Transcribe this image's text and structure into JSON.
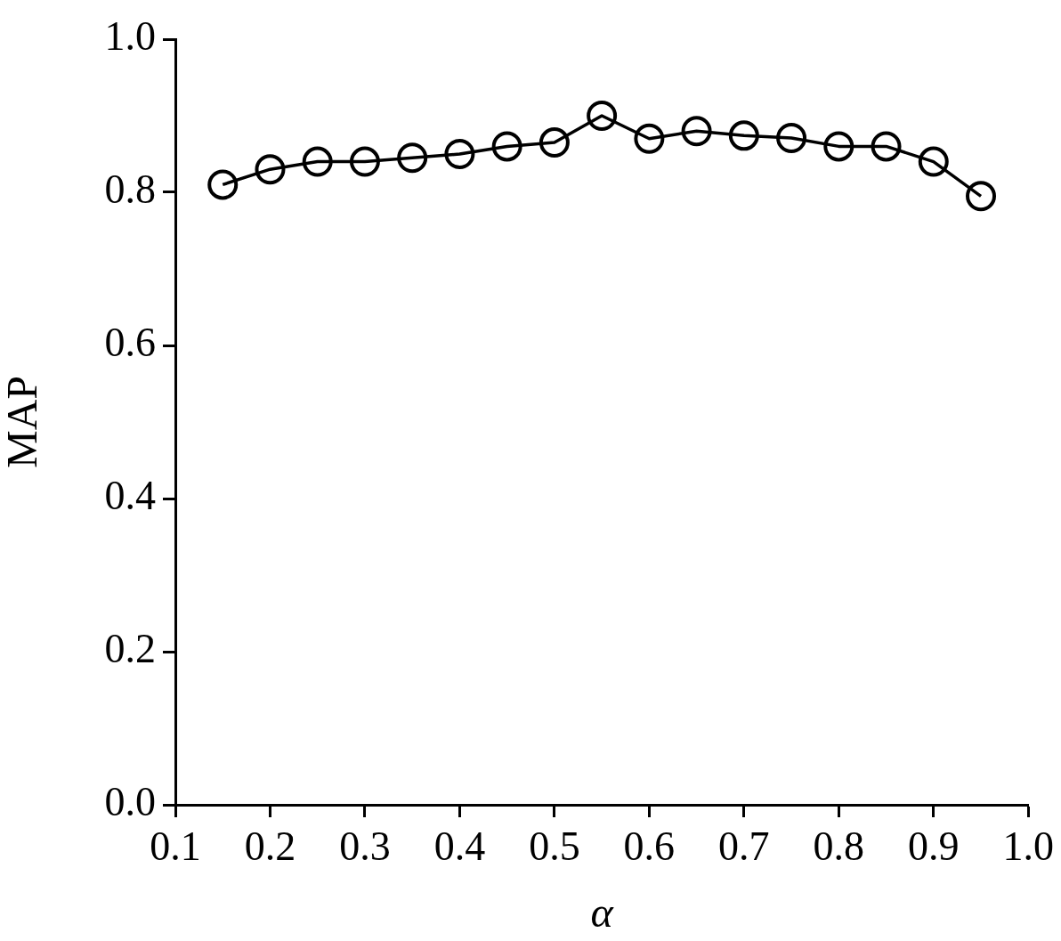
{
  "chart_data": {
    "type": "line",
    "xlabel": "α",
    "ylabel": "MAP",
    "x": [
      0.15,
      0.2,
      0.25,
      0.3,
      0.35,
      0.4,
      0.45,
      0.5,
      0.55,
      0.6,
      0.65,
      0.7,
      0.75,
      0.8,
      0.85,
      0.9,
      0.95
    ],
    "series": [
      {
        "color": "#000000",
        "values": [
          0.81,
          0.83,
          0.84,
          0.84,
          0.845,
          0.85,
          0.86,
          0.865,
          0.9,
          0.87,
          0.88,
          0.874,
          0.871,
          0.86,
          0.86,
          0.84,
          0.795
        ]
      }
    ],
    "xlim": [
      0.1,
      1.0
    ],
    "xticks": [
      0.1,
      0.2,
      0.3,
      0.4,
      0.5,
      0.6,
      0.7,
      0.8,
      0.9,
      {
        "value": 1.0,
        "label": "1.0"
      }
    ],
    "ylim": [
      0,
      1.0
    ],
    "yticks": [
      {
        "value": 0,
        "label": "0.0"
      },
      0.2,
      0.4,
      0.6,
      0.8,
      {
        "value": 1.0,
        "label": "1.0"
      }
    ],
    "marker": "circle",
    "line_style": "solid",
    "legend": false
  }
}
